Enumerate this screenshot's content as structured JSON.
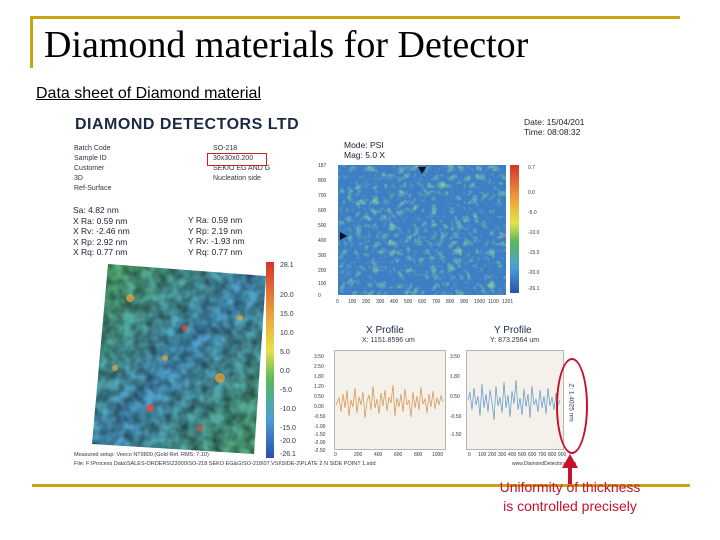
{
  "slide": {
    "title": "Diamond materials for Detector",
    "subtitle": "Data sheet of Diamond material",
    "annotation_line1": "Uniformity of thickness",
    "annotation_line2": "is controlled precisely",
    "accent_color": "#c8a415",
    "annotation_color": "#c8102e"
  },
  "datasheet": {
    "company": "DIAMOND DETECTORS LTD",
    "date": "Date: 15/04/201",
    "time": "Time: 08:08:32",
    "mode": "Mode: PSI",
    "mag": "Mag: 5.0 X",
    "info_labels": [
      "Batch Code",
      "Sample ID",
      "Customer",
      "3D",
      "Ref-Surface"
    ],
    "info_values": [
      "SO-218",
      "30x30x0.200",
      "SEKIO EG AND G",
      "Nucleation side"
    ],
    "stats_left": [
      "Sa: 4.82 nm",
      "X Ra: 0.59 nm",
      "X Rv: -2.46 nm",
      "X Rp: 2.92 nm",
      "X Rq: 0.77 nm"
    ],
    "stats_right": [
      "Y Ra: 0.59 nm",
      "Y Rp: 2.19 nm",
      "Y Rv: -1.93 nm",
      "Y Rq: 0.77 nm"
    ],
    "colorbar_3d": [
      "28.1",
      "20.0",
      "15.0",
      "10.0",
      "5.0",
      "0.0",
      "-5.0",
      "-10.0",
      "-15.0",
      "-20.0",
      "-26.1"
    ],
    "colorbar_map": [
      "0.7",
      "0.0",
      "-5.0",
      "-10.0",
      "-15.0",
      "-20.0",
      "-26.1"
    ],
    "map_y_ticks": [
      "187",
      "800",
      "700",
      "600",
      "500",
      "400",
      "300",
      "200",
      "100",
      "0"
    ],
    "map_x_ticks": [
      "0",
      "100",
      "200",
      "300",
      "400",
      "500",
      "600",
      "700",
      "800",
      "900",
      "1000",
      "1100",
      "1201"
    ],
    "x_profile_title": "X Profile",
    "x_profile_sub": "X: 1151.8596 um",
    "y_profile_title": "Y Profile",
    "y_profile_sub": "Y: 873.2564 um",
    "profile_y_ticks": [
      "3.50",
      "2.50",
      "1.80",
      "1.20",
      "0.50",
      "0.00",
      "-0.50",
      "-1.00",
      "-1.50",
      "-2.00",
      "-2.50"
    ],
    "x_profile_x_ticks": [
      "0",
      "200",
      "400",
      "600",
      "800",
      "1000"
    ],
    "y_profile_x_ticks": [
      "0",
      "100",
      "200",
      "300",
      "400",
      "500",
      "600",
      "700",
      "800",
      "900"
    ],
    "vertical_label": "Z: 1.4025 nm",
    "footer_line1": "Measured setup: Veeco NT9800 (Gold Ref. RMS: 7.10)",
    "footer_line2": "File: F:\\Process Data\\SALES-ORDERS\\23000\\SO-218 SEKO EG&G\\SO-218\\07.VSI\\SIDE-2\\PLATE 2 N SIDE POINT 1.sdd",
    "footer_right": "www.DiamondDetectors.com"
  }
}
